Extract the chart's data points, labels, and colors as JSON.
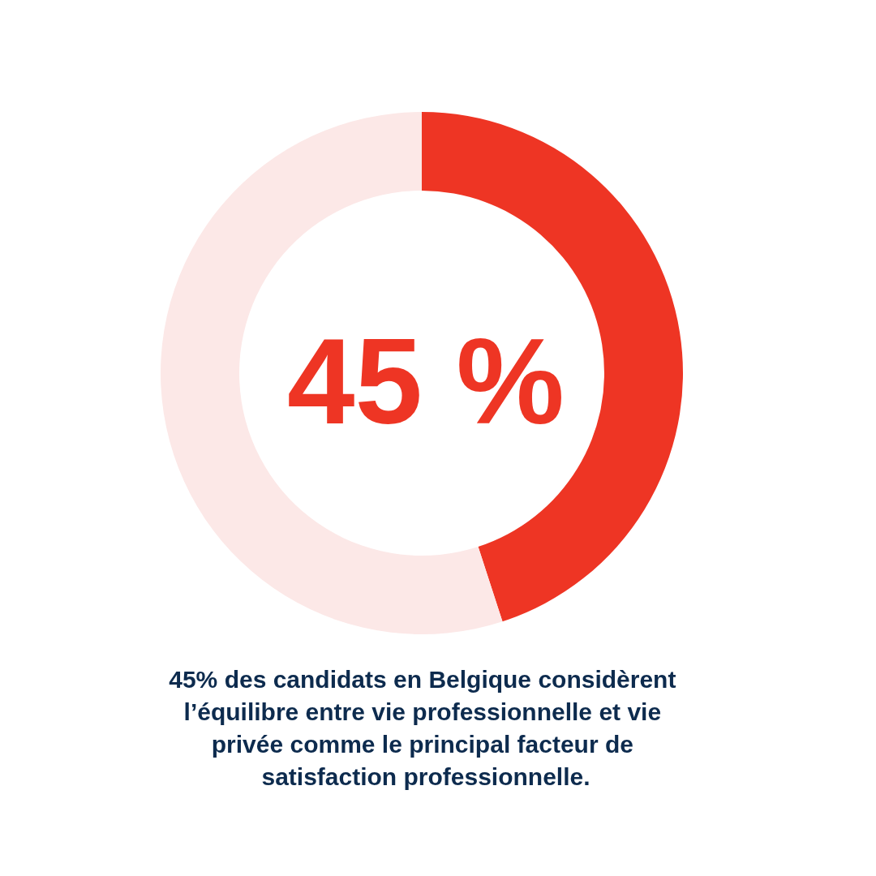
{
  "chart_data": {
    "type": "donut",
    "categories": [
      null,
      null
    ],
    "values": [
      45,
      55
    ],
    "colors": [
      "#ee3524",
      "#fce8e7"
    ],
    "annotations": [
      "45 %",
      "45% des candidats en Belgique considèrent l’équilibre entre vie professionnelle et vie privée comme le principal facteur de satisfaction professionnelle."
    ]
  }
}
